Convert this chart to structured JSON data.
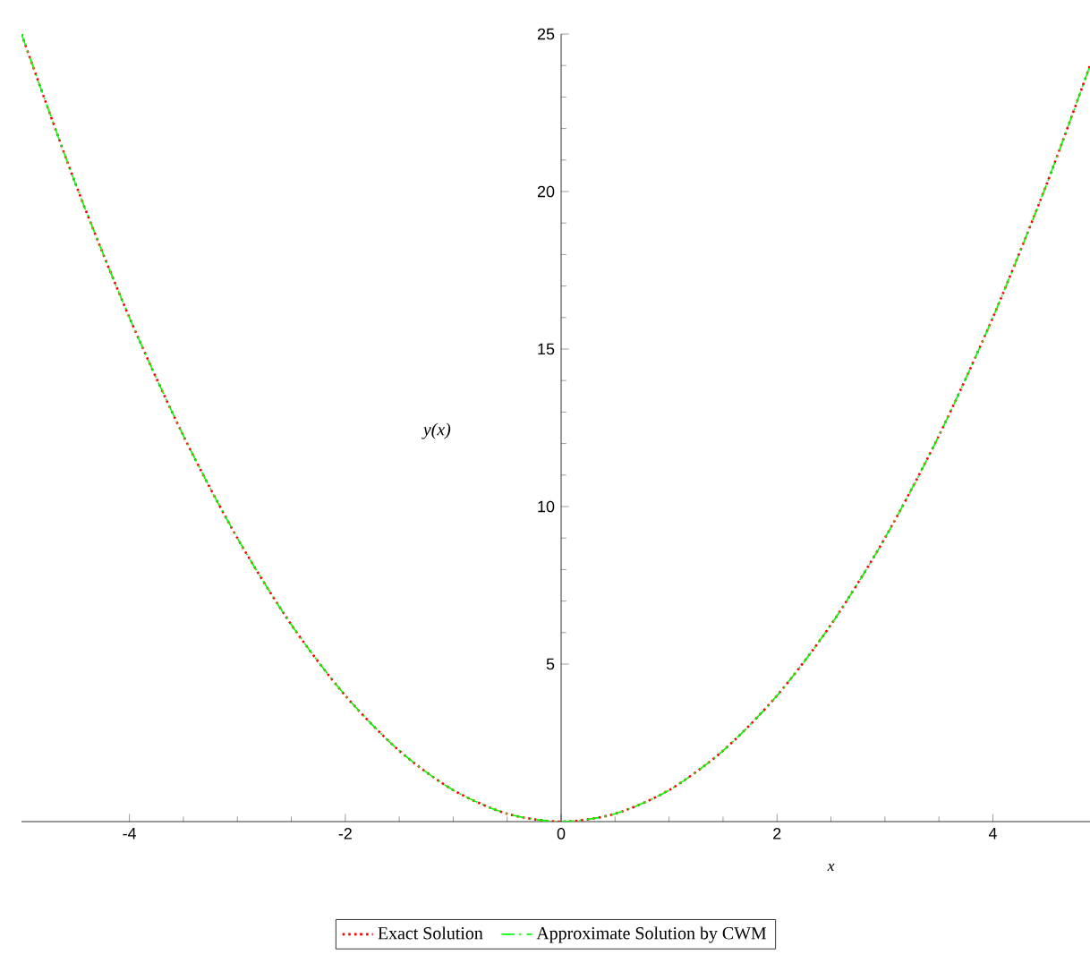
{
  "chart_data": {
    "type": "line",
    "xlabel": "x",
    "ylabel": "y(x)",
    "x": [
      -5,
      -4.5,
      -4,
      -3.5,
      -3,
      -2.5,
      -2,
      -1.5,
      -1,
      -0.5,
      0,
      0.5,
      1,
      1.5,
      2,
      2.5,
      3,
      3.5,
      4,
      4.5,
      4.9
    ],
    "series": [
      {
        "name": "Exact Solution",
        "color": "#ff0000",
        "line_style": "dotted",
        "values": [
          25,
          20.25,
          16,
          12.25,
          9,
          6.25,
          4,
          2.25,
          1,
          0.25,
          0,
          0.25,
          1,
          2.25,
          4,
          6.25,
          9,
          12.25,
          16,
          20.25,
          24
        ]
      },
      {
        "name": "Approximate Solution by CWM",
        "color": "#00ff00",
        "line_style": "dashed",
        "values": [
          25,
          20.25,
          16,
          12.25,
          9,
          6.25,
          4,
          2.25,
          1,
          0.25,
          0,
          0.25,
          1,
          2.25,
          4,
          6.25,
          9,
          12.25,
          16,
          20.25,
          24
        ]
      }
    ],
    "xlim": [
      -5,
      4.9
    ],
    "ylim": [
      0,
      25
    ],
    "xticks": [
      -4,
      -2,
      0,
      2,
      4
    ],
    "yticks": [
      5,
      10,
      15,
      20,
      25
    ],
    "grid": false,
    "legend": "bottom",
    "marker": "none"
  }
}
